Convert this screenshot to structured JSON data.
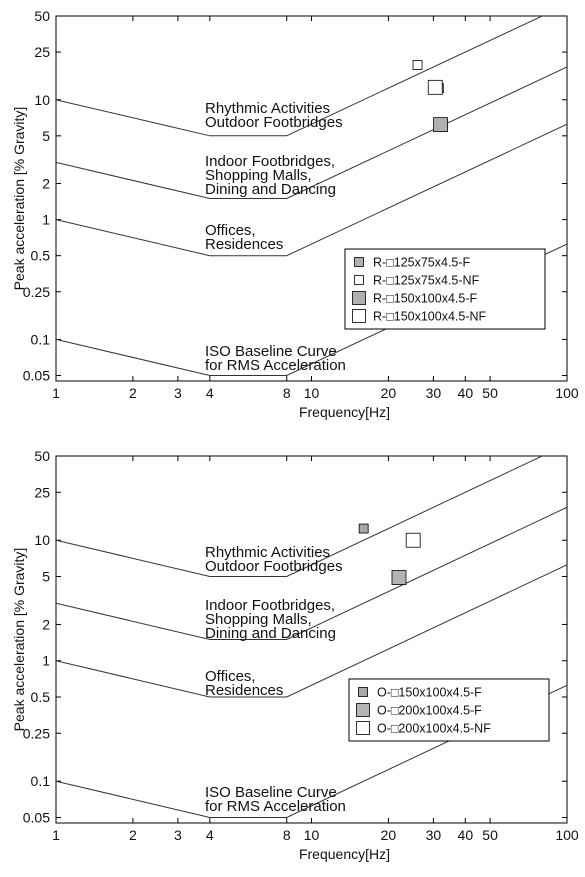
{
  "chart_data": [
    {
      "type": "scatter",
      "title": "",
      "xlabel": "Frequency[Hz]",
      "ylabel": "Peak acceleration [% Gravity]",
      "xscale": "log",
      "yscale": "log",
      "xlim": [
        1,
        100
      ],
      "ylim": [
        0.045,
        50
      ],
      "x_ticks": [
        1,
        2,
        3,
        4,
        8,
        10,
        20,
        30,
        40,
        50,
        100
      ],
      "x_tick_labels": [
        "1",
        "2",
        "3",
        "4",
        "8",
        "10",
        "20",
        "30",
        "40",
        "50",
        "100"
      ],
      "y_ticks": [
        0.05,
        0.1,
        0.25,
        0.5,
        1,
        2,
        5,
        10,
        25,
        50
      ],
      "y_tick_labels": [
        "0.05",
        "0.1",
        "0.25",
        "0.5",
        "1",
        "2",
        "5",
        "10",
        "25",
        "50"
      ],
      "grid": false,
      "legend_position": "lower-right",
      "limit_curves": [
        {
          "label_lines": [
            "Rhythmic Activities",
            "Outdoor Footbridges"
          ],
          "x": [
            1,
            4,
            8,
            100
          ],
          "y": [
            10,
            5,
            5,
            62.5
          ]
        },
        {
          "label_lines": [
            "Indoor Footbridges,",
            "Shopping Malls,",
            "Dining and Dancing"
          ],
          "x": [
            1,
            4,
            8,
            100
          ],
          "y": [
            3,
            1.5,
            1.5,
            18.75
          ]
        },
        {
          "label_lines": [
            "Offices,",
            "Residences"
          ],
          "x": [
            1,
            4,
            8,
            100
          ],
          "y": [
            1,
            0.5,
            0.5,
            6.25
          ]
        },
        {
          "label_lines": [
            "ISO Baseline Curve",
            "for RMS Acceleration"
          ],
          "x": [
            1,
            4,
            8,
            100
          ],
          "y": [
            0.1,
            0.05,
            0.05,
            0.625
          ]
        }
      ],
      "series": [
        {
          "name": "R-□125x75x4.5-F",
          "marker": "small-square",
          "fill": "#b0b0b0",
          "x": [
            31.5
          ],
          "y": [
            12.5
          ]
        },
        {
          "name": "R-□125x75x4.5-NF",
          "marker": "small-square",
          "fill": "#ffffff",
          "x": [
            26
          ],
          "y": [
            19.5
          ]
        },
        {
          "name": "R-□150x100x4.5-F",
          "marker": "square",
          "fill": "#b0b0b0",
          "x": [
            32
          ],
          "y": [
            6.2
          ]
        },
        {
          "name": "R-□150x100x4.5-NF",
          "marker": "square",
          "fill": "#ffffff",
          "x": [
            30.5
          ],
          "y": [
            12.7
          ]
        }
      ]
    },
    {
      "type": "scatter",
      "title": "",
      "xlabel": "Frequency[Hz]",
      "ylabel": "Peak acceleration [% Gravity]",
      "xscale": "log",
      "yscale": "log",
      "xlim": [
        1,
        100
      ],
      "ylim": [
        0.045,
        50
      ],
      "x_ticks": [
        1,
        2,
        3,
        4,
        8,
        10,
        20,
        30,
        40,
        50,
        100
      ],
      "x_tick_labels": [
        "1",
        "2",
        "3",
        "4",
        "8",
        "10",
        "20",
        "30",
        "40",
        "50",
        "100"
      ],
      "y_ticks": [
        0.05,
        0.1,
        0.25,
        0.5,
        1,
        2,
        5,
        10,
        25,
        50
      ],
      "y_tick_labels": [
        "0.05",
        "0.1",
        "0.25",
        "0.5",
        "1",
        "2",
        "5",
        "10",
        "25",
        "50"
      ],
      "grid": false,
      "legend_position": "lower-right",
      "limit_curves": [
        {
          "label_lines": [
            "Rhythmic Activities",
            "Outdoor Footbridges"
          ],
          "x": [
            1,
            4,
            8,
            100
          ],
          "y": [
            10,
            5,
            5,
            62.5
          ]
        },
        {
          "label_lines": [
            "Indoor Footbridges,",
            "Shopping Malls,",
            "Dining and Dancing"
          ],
          "x": [
            1,
            4,
            8,
            100
          ],
          "y": [
            3,
            1.5,
            1.5,
            18.75
          ]
        },
        {
          "label_lines": [
            "Offices,",
            "Residences"
          ],
          "x": [
            1,
            4,
            8,
            100
          ],
          "y": [
            1,
            0.5,
            0.5,
            6.25
          ]
        },
        {
          "label_lines": [
            "ISO Baseline Curve",
            "for RMS Acceleration"
          ],
          "x": [
            1,
            4,
            8,
            100
          ],
          "y": [
            0.1,
            0.05,
            0.05,
            0.625
          ]
        }
      ],
      "series": [
        {
          "name": "O-□150x100x4.5-F",
          "marker": "small-square",
          "fill": "#a8a8a8",
          "x": [
            16
          ],
          "y": [
            12.5
          ]
        },
        {
          "name": "O-□200x100x4.5-F",
          "marker": "square",
          "fill": "#b4b4b4",
          "x": [
            22
          ],
          "y": [
            4.9
          ]
        },
        {
          "name": "O-□200x100x4.5-NF",
          "marker": "square",
          "fill": "#ffffff",
          "x": [
            25
          ],
          "y": [
            10
          ]
        }
      ]
    }
  ]
}
